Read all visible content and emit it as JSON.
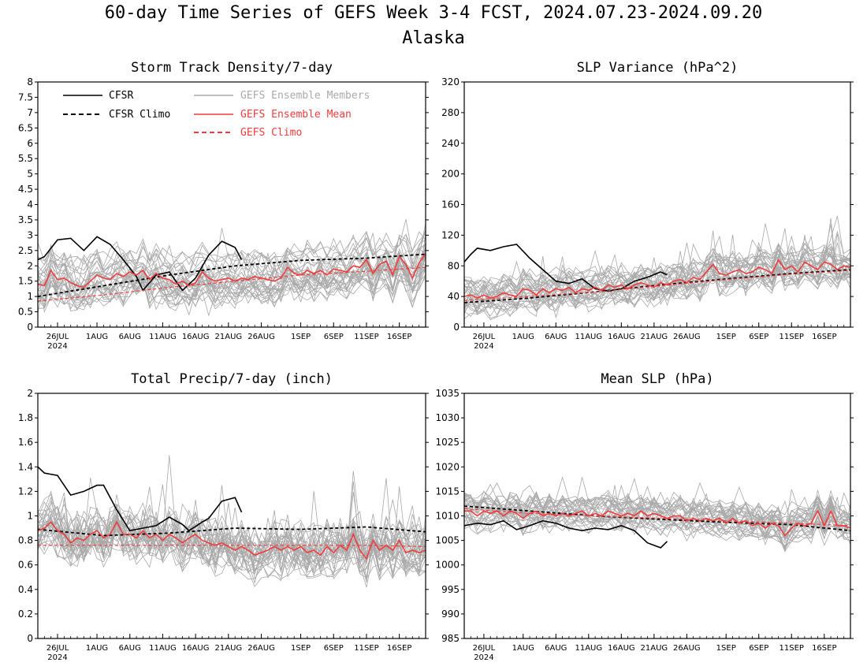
{
  "figure": {
    "title": "60-day Time Series of GEFS Week 3-4 FCST, 2024.07.23-2024.09.20",
    "subtitle": "Alaska"
  },
  "colors": {
    "cfsr": "#000000",
    "cfsr_climo": "#000000",
    "members": "#a8a8a8",
    "ens_mean": "#f03c3c",
    "gefs_climo": "#f03c3c"
  },
  "x_ticks": [
    "26JUL",
    "1AUG",
    "6AUG",
    "11AUG",
    "16AUG",
    "21AUG",
    "26AUG",
    "1SEP",
    "6SEP",
    "11SEP",
    "16SEP"
  ],
  "x_tick_days": [
    3,
    9,
    14,
    19,
    24,
    29,
    34,
    40,
    45,
    50,
    55
  ],
  "x_year_label": "2024",
  "legend": {
    "cfsr": "CFSR",
    "cfsr_climo": "CFSR Climo",
    "members": "GEFS Ensemble Members",
    "ens_mean": "GEFS Ensemble Mean",
    "gefs_climo": "GEFS Climo"
  },
  "chart_data": [
    {
      "type": "line",
      "title": "Storm Track Density/7-day",
      "ylim": [
        0,
        8
      ],
      "yticks": [
        "0",
        "0.5",
        "1",
        "1.5",
        "2",
        "2.5",
        "3",
        "3.5",
        "4",
        "4.5",
        "5",
        "5.5",
        "6",
        "6.5",
        "7",
        "7.5",
        "8"
      ],
      "x_days": [
        0,
        59
      ],
      "legend_position": "top-left",
      "series": [
        {
          "name": "CFSR",
          "role": "cfsr",
          "x": [
            0,
            1,
            3,
            5,
            7,
            9,
            11,
            13,
            15,
            16,
            18,
            20,
            22,
            24,
            26,
            28,
            30,
            31
          ],
          "values": [
            2.2,
            2.3,
            2.85,
            2.9,
            2.5,
            2.95,
            2.7,
            2.2,
            1.65,
            1.2,
            1.7,
            1.8,
            1.2,
            1.6,
            2.35,
            2.8,
            2.6,
            2.2
          ]
        },
        {
          "name": "CFSR Climo",
          "role": "cfsr_climo",
          "x": [
            0,
            10,
            20,
            30,
            40,
            50,
            59
          ],
          "values": [
            1.0,
            1.35,
            1.7,
            2.0,
            2.18,
            2.25,
            2.38
          ]
        },
        {
          "name": "GEFS Ensemble Mean",
          "role": "ens_mean",
          "x": [
            0,
            1,
            2,
            3,
            4,
            5,
            6,
            7,
            8,
            9,
            10,
            11,
            12,
            13,
            14,
            15,
            16,
            17,
            18,
            19,
            20,
            21,
            22,
            23,
            24,
            25,
            26,
            27,
            28,
            29,
            30,
            31,
            32,
            33,
            34,
            35,
            36,
            37,
            38,
            39,
            40,
            41,
            42,
            43,
            44,
            45,
            46,
            47,
            48,
            49,
            50,
            51,
            52,
            53,
            54,
            55,
            56,
            57,
            58,
            59
          ],
          "values": [
            1.4,
            1.35,
            1.85,
            1.55,
            1.6,
            1.45,
            1.35,
            1.3,
            1.5,
            1.7,
            1.6,
            1.55,
            1.75,
            1.65,
            1.8,
            1.7,
            1.85,
            1.55,
            1.75,
            1.6,
            1.55,
            1.4,
            1.5,
            1.35,
            1.45,
            1.8,
            1.6,
            1.5,
            1.55,
            1.6,
            1.5,
            1.6,
            1.55,
            1.65,
            1.6,
            1.55,
            1.5,
            1.6,
            1.95,
            1.75,
            1.7,
            1.85,
            1.75,
            1.85,
            1.7,
            1.9,
            1.85,
            1.8,
            2.0,
            1.95,
            2.2,
            1.75,
            2.05,
            2.15,
            1.7,
            2.3,
            2.05,
            1.6,
            2.1,
            2.4
          ]
        },
        {
          "name": "GEFS Climo",
          "role": "gefs_climo",
          "x": [
            0,
            10,
            20,
            30,
            40,
            50,
            59
          ],
          "values": [
            0.85,
            1.05,
            1.3,
            1.5,
            1.7,
            1.82,
            1.95
          ]
        }
      ],
      "members": {
        "count": 31,
        "spread": 0.7,
        "noise": 0.35,
        "spike": 1.8
      }
    },
    {
      "type": "line",
      "title": "SLP Variance (hPa^2)",
      "ylim": [
        0,
        320
      ],
      "yticks": [
        "0",
        "40",
        "80",
        "120",
        "160",
        "200",
        "240",
        "280",
        "320"
      ],
      "x_days": [
        0,
        59
      ],
      "series": [
        {
          "name": "CFSR",
          "role": "cfsr",
          "x": [
            0,
            1,
            2,
            4,
            6,
            8,
            10,
            12,
            14,
            16,
            18,
            20,
            22,
            24,
            26,
            28,
            30,
            31
          ],
          "values": [
            85,
            95,
            103,
            100,
            105,
            108,
            90,
            75,
            60,
            57,
            63,
            50,
            47,
            50,
            60,
            65,
            72,
            68
          ]
        },
        {
          "name": "CFSR Climo",
          "role": "cfsr_climo",
          "x": [
            0,
            10,
            20,
            30,
            40,
            50,
            59
          ],
          "values": [
            32,
            38,
            46,
            55,
            63,
            70,
            75
          ]
        },
        {
          "name": "GEFS Ensemble Mean",
          "role": "ens_mean",
          "x": [
            0,
            1,
            2,
            3,
            4,
            5,
            6,
            7,
            8,
            9,
            10,
            11,
            12,
            13,
            14,
            15,
            16,
            17,
            18,
            19,
            20,
            21,
            22,
            23,
            24,
            25,
            26,
            27,
            28,
            29,
            30,
            31,
            32,
            33,
            34,
            35,
            36,
            37,
            38,
            39,
            40,
            41,
            42,
            43,
            44,
            45,
            46,
            47,
            48,
            49,
            50,
            51,
            52,
            53,
            54,
            55,
            56,
            57,
            58,
            59
          ],
          "values": [
            40,
            42,
            38,
            42,
            38,
            40,
            45,
            42,
            40,
            50,
            48,
            42,
            50,
            45,
            50,
            48,
            52,
            45,
            50,
            48,
            52,
            48,
            55,
            52,
            55,
            50,
            55,
            58,
            55,
            52,
            58,
            55,
            60,
            62,
            58,
            65,
            62,
            72,
            82,
            70,
            68,
            72,
            75,
            70,
            72,
            78,
            75,
            70,
            88,
            75,
            80,
            72,
            85,
            80,
            75,
            85,
            82,
            75,
            80,
            78
          ]
        },
        {
          "name": "GEFS Climo",
          "role": "gefs_climo",
          "x": [
            0,
            10,
            20,
            30,
            40,
            50,
            59
          ],
          "values": [
            35,
            40,
            46,
            54,
            62,
            69,
            74
          ]
        }
      ],
      "members": {
        "count": 31,
        "spread": 18,
        "noise": 12,
        "spike": 80
      }
    },
    {
      "type": "line",
      "title": "Total Precip/7-day (inch)",
      "ylim": [
        0,
        2
      ],
      "yticks": [
        "0",
        "0.2",
        "0.4",
        "0.6",
        "0.8",
        "1",
        "1.2",
        "1.4",
        "1.6",
        "1.8",
        "2"
      ],
      "x_days": [
        0,
        59
      ],
      "series": [
        {
          "name": "CFSR",
          "role": "cfsr",
          "x": [
            0,
            1,
            3,
            5,
            7,
            9,
            10,
            12,
            14,
            16,
            18,
            20,
            22,
            23,
            25,
            26,
            28,
            30,
            31
          ],
          "values": [
            1.4,
            1.35,
            1.33,
            1.17,
            1.2,
            1.25,
            1.25,
            1.05,
            0.88,
            0.9,
            0.92,
            0.99,
            0.93,
            0.88,
            0.95,
            0.98,
            1.12,
            1.15,
            1.03
          ]
        },
        {
          "name": "CFSR Climo",
          "role": "cfsr_climo",
          "x": [
            0,
            10,
            20,
            30,
            40,
            50,
            59
          ],
          "values": [
            0.89,
            0.84,
            0.86,
            0.9,
            0.89,
            0.91,
            0.87
          ]
        },
        {
          "name": "GEFS Ensemble Mean",
          "role": "ens_mean",
          "x": [
            0,
            1,
            2,
            3,
            4,
            5,
            6,
            7,
            8,
            9,
            10,
            11,
            12,
            13,
            14,
            15,
            16,
            17,
            18,
            19,
            20,
            21,
            22,
            23,
            24,
            25,
            26,
            27,
            28,
            29,
            30,
            31,
            32,
            33,
            34,
            35,
            36,
            37,
            38,
            39,
            40,
            41,
            42,
            43,
            44,
            45,
            46,
            47,
            48,
            49,
            50,
            51,
            52,
            53,
            54,
            55,
            56,
            57,
            58,
            59
          ],
          "values": [
            0.88,
            0.9,
            0.95,
            0.88,
            0.85,
            0.78,
            0.82,
            0.8,
            0.85,
            0.88,
            0.82,
            0.85,
            0.95,
            0.85,
            0.85,
            0.82,
            0.88,
            0.82,
            0.85,
            0.8,
            0.85,
            0.82,
            0.78,
            0.82,
            0.85,
            0.8,
            0.78,
            0.76,
            0.78,
            0.75,
            0.72,
            0.75,
            0.72,
            0.68,
            0.7,
            0.72,
            0.75,
            0.72,
            0.75,
            0.72,
            0.75,
            0.7,
            0.72,
            0.68,
            0.75,
            0.7,
            0.76,
            0.72,
            0.85,
            0.72,
            0.65,
            0.8,
            0.72,
            0.76,
            0.72,
            0.8,
            0.7,
            0.72,
            0.7,
            0.72
          ]
        },
        {
          "name": "GEFS Climo",
          "role": "gefs_climo",
          "x": [
            0,
            10,
            20,
            30,
            40,
            50,
            59
          ],
          "values": [
            0.76,
            0.76,
            0.76,
            0.76,
            0.76,
            0.76,
            0.75
          ]
        }
      ],
      "members": {
        "count": 31,
        "spread": 0.12,
        "noise": 0.14,
        "spike": 0.6
      }
    },
    {
      "type": "line",
      "title": "Mean SLP (hPa)",
      "ylim": [
        985,
        1035
      ],
      "yticks": [
        "985",
        "990",
        "995",
        "1000",
        "1005",
        "1010",
        "1015",
        "1020",
        "1025",
        "1030",
        "1035"
      ],
      "x_days": [
        0,
        59
      ],
      "series": [
        {
          "name": "CFSR",
          "role": "cfsr",
          "x": [
            0,
            2,
            4,
            6,
            8,
            10,
            12,
            14,
            16,
            18,
            20,
            22,
            24,
            26,
            28,
            30,
            31
          ],
          "values": [
            1008,
            1008.5,
            1008.2,
            1009,
            1007.2,
            1008,
            1009,
            1008.5,
            1007.5,
            1007,
            1007.5,
            1007.2,
            1008,
            1007,
            1004.5,
            1003.5,
            1004.8
          ]
        },
        {
          "name": "CFSR Climo",
          "role": "cfsr_climo",
          "x": [
            0,
            10,
            20,
            30,
            40,
            50,
            59
          ],
          "values": [
            1012,
            1011,
            1010,
            1009.3,
            1008.7,
            1008.2,
            1007
          ]
        },
        {
          "name": "GEFS Ensemble Mean",
          "role": "ens_mean",
          "x": [
            0,
            1,
            2,
            3,
            4,
            5,
            6,
            7,
            8,
            9,
            10,
            11,
            12,
            13,
            14,
            15,
            16,
            17,
            18,
            19,
            20,
            21,
            22,
            23,
            24,
            25,
            26,
            27,
            28,
            29,
            30,
            31,
            32,
            33,
            34,
            35,
            36,
            37,
            38,
            39,
            40,
            41,
            42,
            43,
            44,
            45,
            46,
            47,
            48,
            49,
            50,
            51,
            52,
            53,
            54,
            55,
            56,
            57,
            58,
            59
          ],
          "values": [
            1011,
            1011,
            1010,
            1011,
            1010.5,
            1011,
            1010,
            1011,
            1010.5,
            1009.5,
            1010.5,
            1011,
            1010,
            1010.5,
            1010,
            1010.5,
            1010,
            1010.5,
            1011,
            1010,
            1010.5,
            1010,
            1011,
            1010.5,
            1010,
            1010.5,
            1010,
            1011,
            1010,
            1010.5,
            1010,
            1009.5,
            1010,
            1010,
            1009,
            1009.5,
            1009,
            1009.5,
            1009,
            1009.5,
            1008.5,
            1009.5,
            1008.5,
            1009,
            1008,
            1008.5,
            1007.5,
            1008.5,
            1008,
            1006,
            1007.5,
            1008.5,
            1008,
            1008.5,
            1011,
            1008,
            1011,
            1008,
            1008,
            1007.5
          ]
        },
        {
          "name": "GEFS Climo",
          "role": "gefs_climo",
          "x": [
            0,
            10,
            20,
            30,
            40,
            50,
            59
          ],
          "values": [
            1011.5,
            1010.5,
            1010,
            1009.5,
            1009,
            1008.5,
            1008
          ]
        }
      ],
      "members": {
        "count": 31,
        "spread": 2.5,
        "noise": 1.8,
        "spike": 8
      }
    }
  ]
}
